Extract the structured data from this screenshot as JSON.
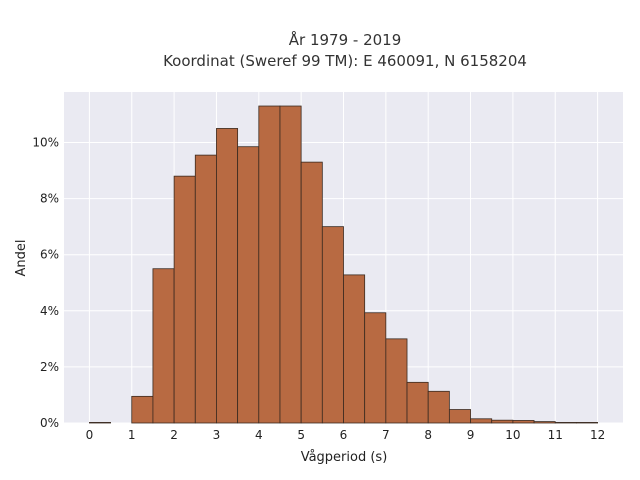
{
  "chart_data": {
    "type": "bar",
    "title": "År 1979 - 2019",
    "subtitle": "Koordinat (Sweref 99 TM): E 460091, N 6158204",
    "xlabel": "Vågperiod (s)",
    "ylabel": "Andel",
    "bar_color": "#b86a42",
    "background_color": "#eaeaf2",
    "grid": true,
    "bin_width": 0.5,
    "xlim": [
      -0.6,
      12.6
    ],
    "ylim": [
      0,
      0.118
    ],
    "x_ticks": [
      0,
      1,
      2,
      3,
      4,
      5,
      6,
      7,
      8,
      9,
      10,
      11,
      12
    ],
    "x_tick_labels": [
      "0",
      "1",
      "2",
      "3",
      "4",
      "5",
      "6",
      "7",
      "8",
      "9",
      "10",
      "11",
      "12"
    ],
    "y_ticks": [
      0,
      0.02,
      0.04,
      0.06,
      0.08,
      0.1
    ],
    "y_tick_labels": [
      "0%",
      "2%",
      "4%",
      "6%",
      "8%",
      "10%"
    ],
    "bin_starts": [
      0,
      0.5,
      1,
      1.5,
      2,
      2.5,
      3,
      3.5,
      4,
      4.5,
      5,
      5.5,
      6,
      6.5,
      7,
      7.5,
      8,
      8.5,
      9,
      9.5,
      10,
      10.5,
      11,
      11.5
    ],
    "values": [
      0.0002,
      0,
      0.0095,
      0.055,
      0.088,
      0.0955,
      0.105,
      0.0985,
      0.113,
      0.113,
      0.093,
      0.07,
      0.0528,
      0.0393,
      0.03,
      0.0145,
      0.0113,
      0.0048,
      0.0015,
      0.001,
      0.0009,
      0.0005,
      0.0002,
      0.0002
    ]
  }
}
